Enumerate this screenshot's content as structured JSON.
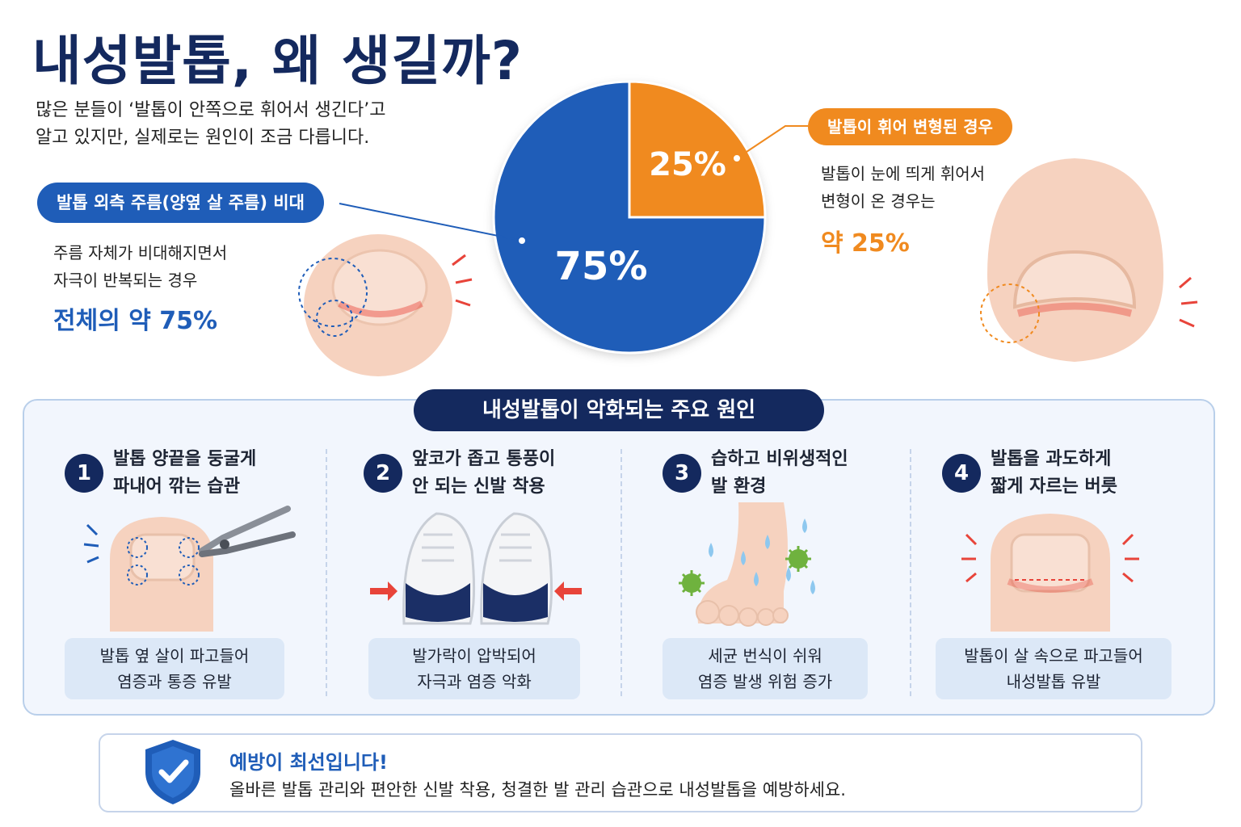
{
  "title": "내성발톱, 왜 생길까?",
  "intro": {
    "line1": "많은 분들이 ‘발톱이 안쪽으로 휘어서 생긴다’고",
    "line2": "알고 있지만, 실제로는 원인이 조금 다릅니다."
  },
  "chart_data": {
    "type": "pie",
    "slices": [
      {
        "label": "발톱 외측 주름(양옆 살 주름) 비대",
        "value": 75,
        "display": "75%",
        "color": "#1f5db8"
      },
      {
        "label": "발톱이 휘어 변형된 경우",
        "value": 25,
        "display": "25%",
        "color": "#f08a1f"
      }
    ]
  },
  "left_callout": {
    "label": "발톱 외측 주름(양옆 살 주름) 비대",
    "line1": "주름 자체가 비대해지면서",
    "line2": "자극이 반복되는 경우",
    "big": "전체의 약 75%"
  },
  "right_callout": {
    "label": "발톱이 휘어 변형된 경우",
    "line1": "발톱이 눈에 띄게 휘어서",
    "line2": "변형이 온 경우는",
    "big": "약 25%"
  },
  "causes": {
    "title": "내성발톱이 악화되는 주요 원인",
    "items": [
      {
        "num": "1",
        "title1": "발톱 양끝을 둥굴게",
        "title2": "파내어 깎는 습관",
        "result1": "발톱 옆 살이 파고들어",
        "result2": "염증과 통증 유발"
      },
      {
        "num": "2",
        "title1": "앞코가 좁고 통풍이",
        "title2": "안 되는 신발 착용",
        "result1": "발가락이 압박되어",
        "result2": "자극과 염증 악화"
      },
      {
        "num": "3",
        "title1": "습하고 비위생적인",
        "title2": "발 환경",
        "result1": "세균 번식이 쉬워",
        "result2": "염증 발생 위험 증가"
      },
      {
        "num": "4",
        "title1": "발톱을 과도하게",
        "title2": "짧게 자르는 버릇",
        "result1": "발톱이 살 속으로 파고들어",
        "result2": "내성발톱 유발"
      }
    ]
  },
  "prevention": {
    "title": "예방이 최선입니다!",
    "text": "올바른 발톱 관리와 편안한 신발 착용, 청결한 발 관리 습관으로 내성발톱을 예방하세요."
  },
  "colors": {
    "navy": "#14295e",
    "blue": "#1f5db8",
    "orange": "#f08a1f",
    "skin": "#f6d2bf",
    "red": "#e8443a"
  }
}
